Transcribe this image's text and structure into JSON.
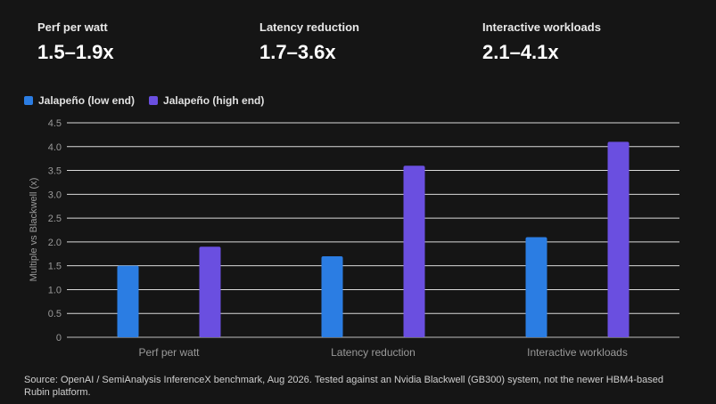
{
  "stats": [
    {
      "label": "Perf per watt",
      "value": "1.5–1.9x"
    },
    {
      "label": "Latency reduction",
      "value": "1.7–3.6x"
    },
    {
      "label": "Interactive workloads",
      "value": "2.1–4.1x"
    }
  ],
  "legend": [
    {
      "label": "Jalapeño (low end)",
      "color": "#2b7de3"
    },
    {
      "label": "Jalapeño (high end)",
      "color": "#6a4fe0"
    }
  ],
  "chart_data": {
    "type": "bar",
    "categories": [
      "Perf per watt",
      "Latency reduction",
      "Interactive workloads"
    ],
    "series": [
      {
        "name": "Jalapeño (low end)",
        "values": [
          1.5,
          1.7,
          2.1
        ],
        "color": "#2b7de3"
      },
      {
        "name": "Jalapeño (high end)",
        "values": [
          1.9,
          3.6,
          4.1
        ],
        "color": "#6a4fe0"
      }
    ],
    "ylabel": "Multiple vs Blackwell (x)",
    "ylim": [
      0,
      4.5
    ],
    "yticks": [
      "0",
      "0.5",
      "1.0",
      "1.5",
      "2.0",
      "2.5",
      "3.0",
      "3.5",
      "4.0",
      "4.5"
    ],
    "grid": true,
    "legend_position": "top-left"
  },
  "source": "Source: OpenAI / SemiAnalysis InferenceX benchmark, Aug 2026. Tested against an Nvidia Blackwell (GB300) system, not the newer HBM4-based Rubin platform."
}
